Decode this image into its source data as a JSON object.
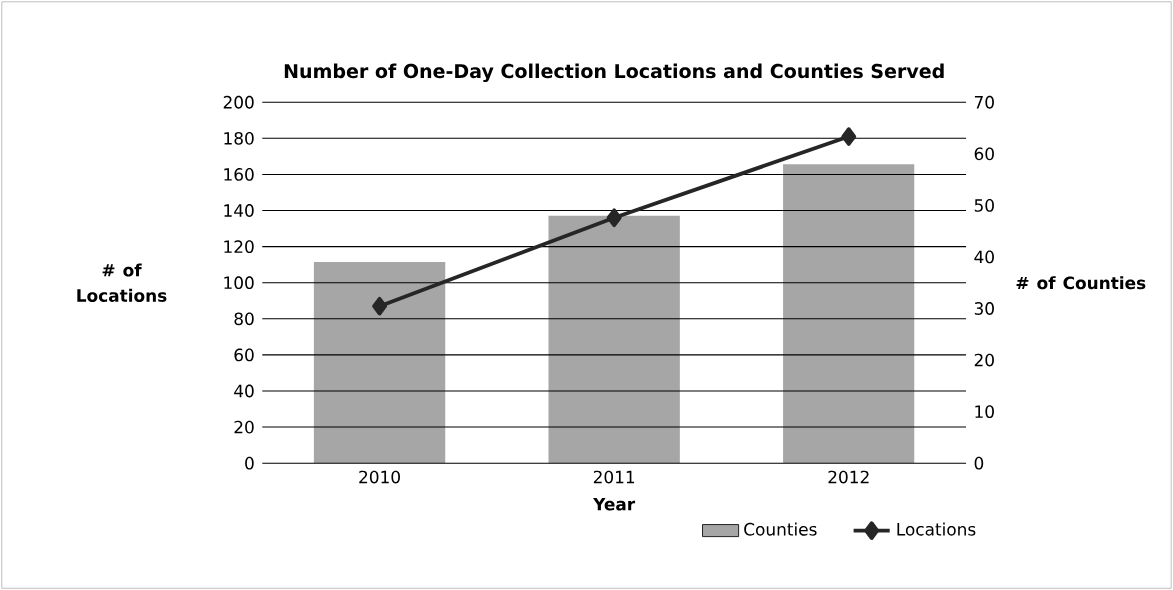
{
  "chart_data": {
    "type": "bar",
    "title": "Number of One-Day Collection Locations and Counties Served",
    "categories": [
      "2010",
      "2011",
      "2012"
    ],
    "xlabel": "Year",
    "ylabel": "# of Locations",
    "y2label": "# of Counties",
    "series": [
      {
        "name": "Counties",
        "axis": "y2",
        "color": "#a6a6a6",
        "values": [
          39,
          48,
          58
        ]
      },
      {
        "name": "Locations",
        "type": "line",
        "axis": "y",
        "color": "#262626",
        "marker": "diamond",
        "values": [
          87,
          136,
          181
        ]
      }
    ],
    "ylim": [
      0,
      200
    ],
    "yticks": [
      0,
      20,
      40,
      60,
      80,
      100,
      120,
      140,
      160,
      180,
      200
    ],
    "y2lim": [
      0,
      70
    ],
    "y2ticks": [
      0,
      10,
      20,
      30,
      40,
      50,
      60,
      70
    ],
    "grid": "y",
    "legend": "bottom right"
  }
}
